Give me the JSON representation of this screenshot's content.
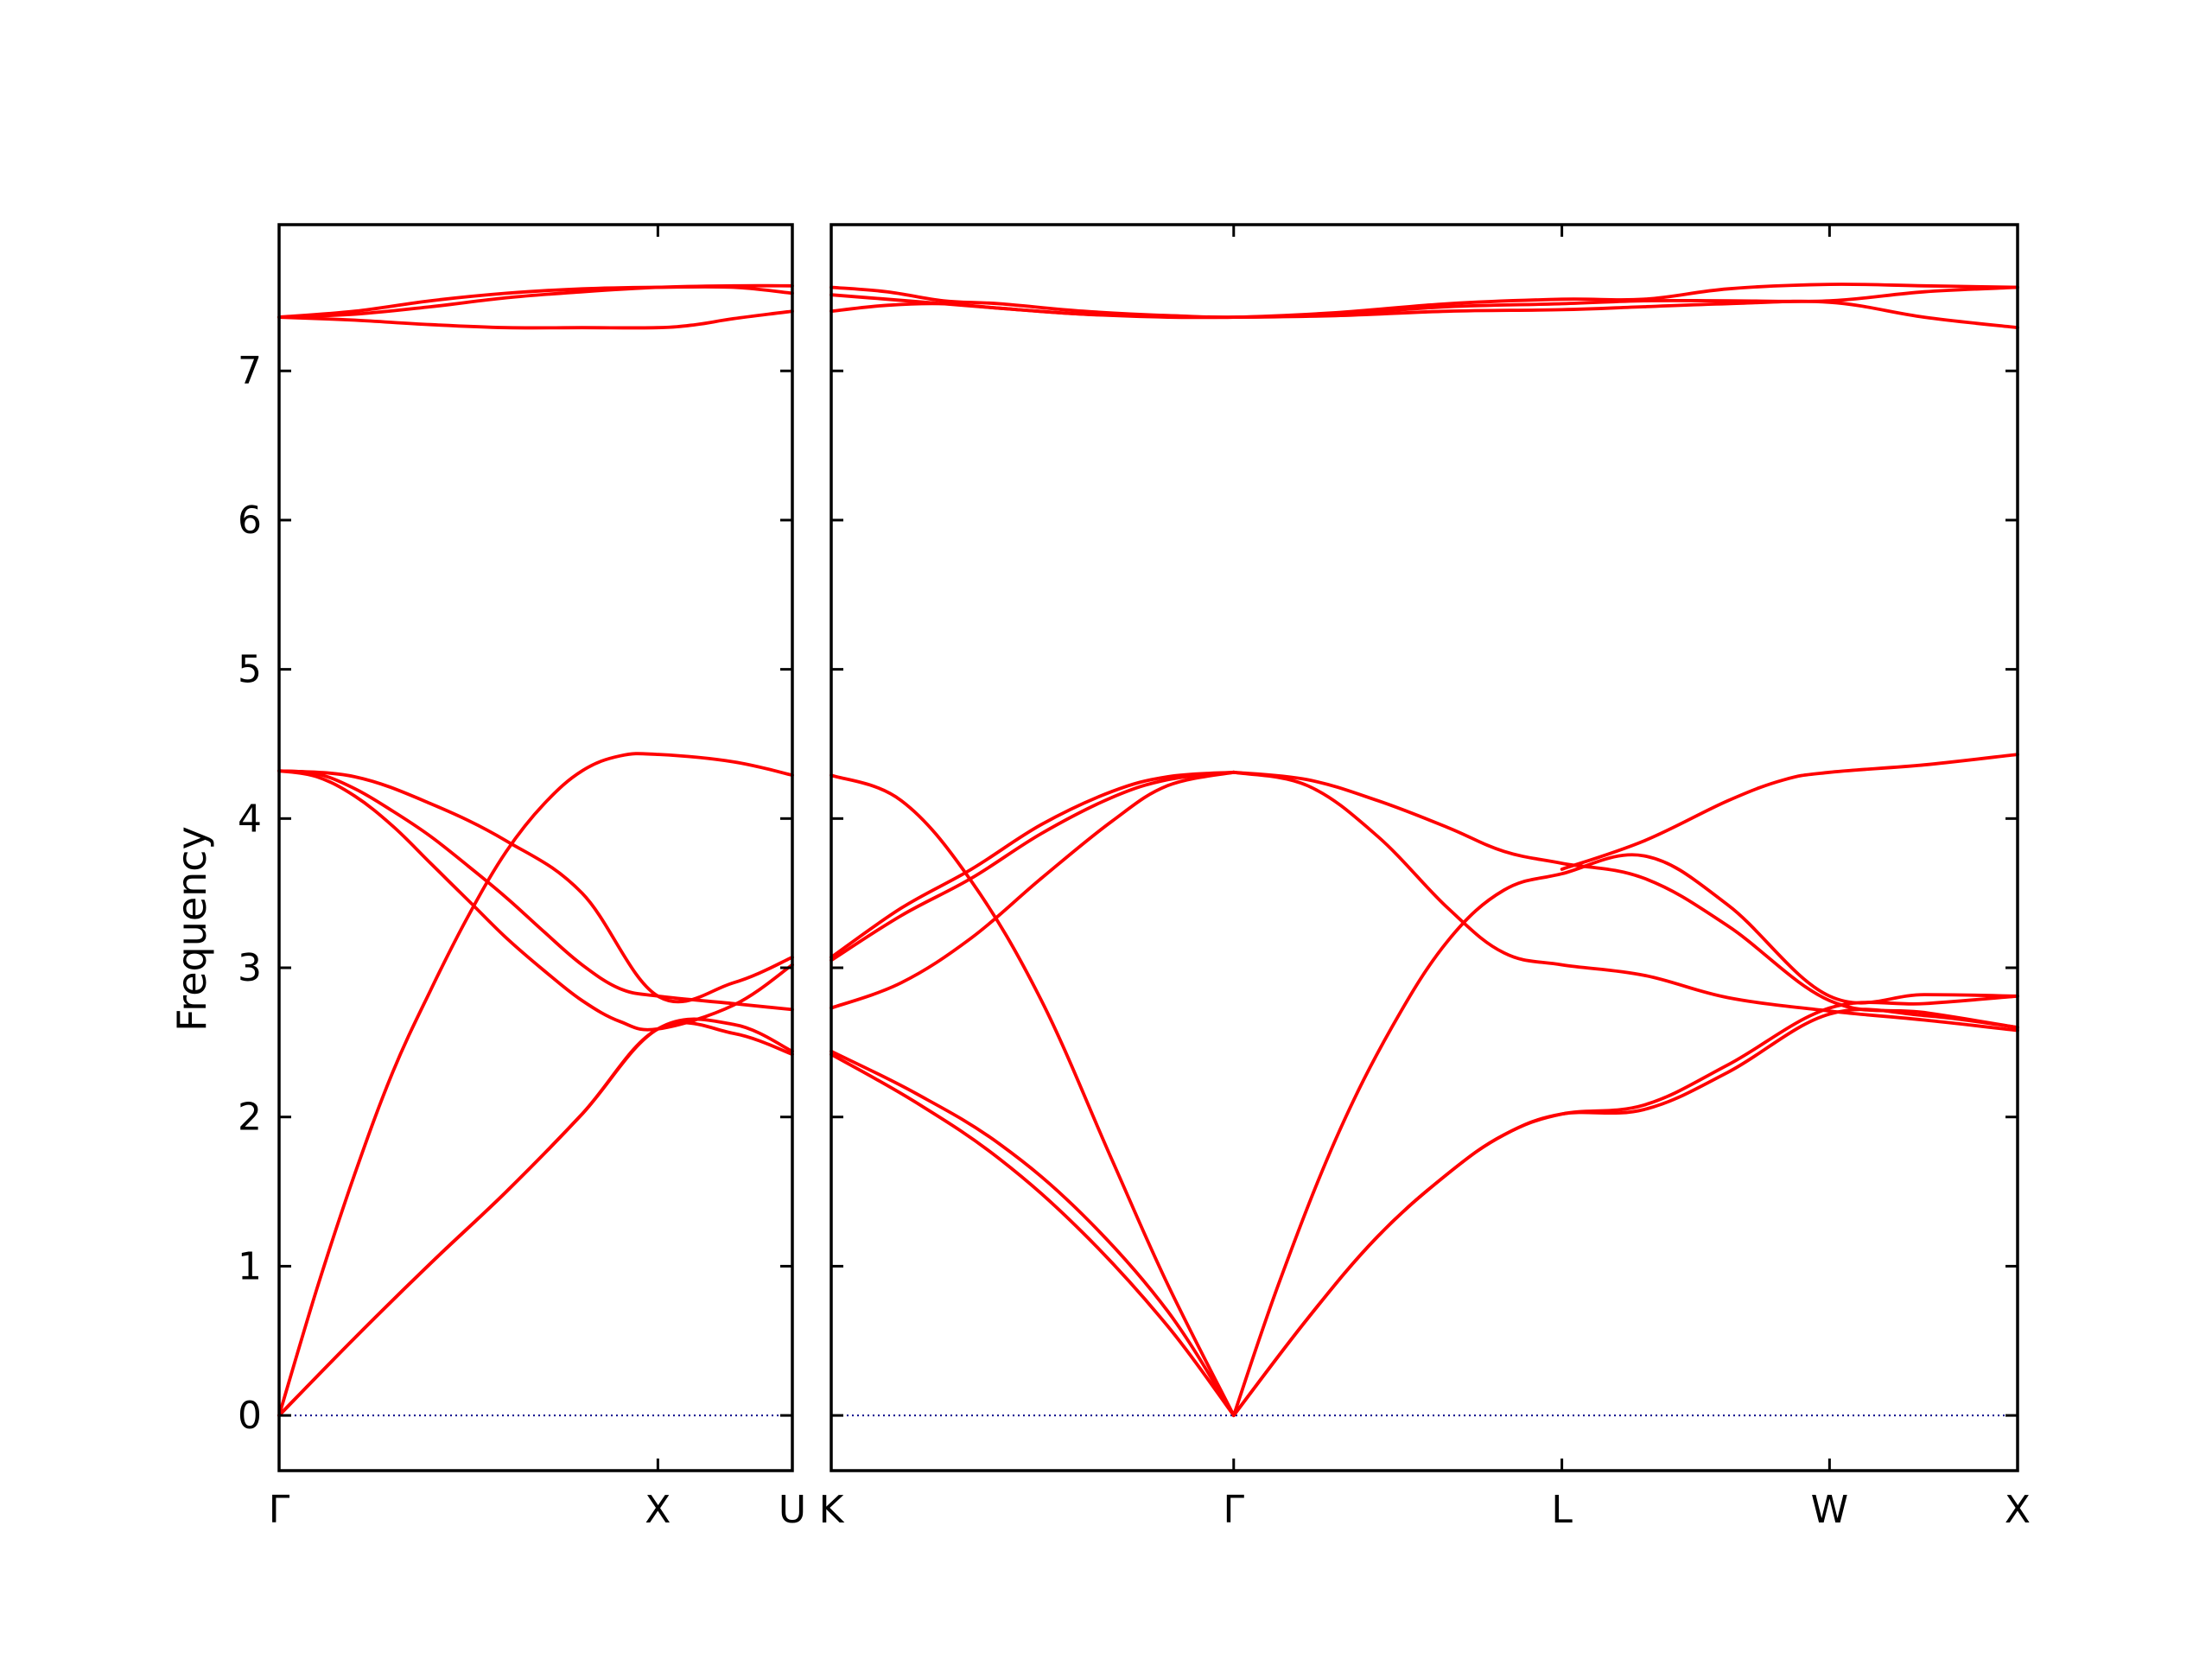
{
  "chart_data": {
    "type": "line",
    "title": "",
    "ylabel": "Frequency",
    "xlabel": "",
    "ylim": [
      -0.37,
      7.98
    ],
    "yticks": [
      0,
      1,
      2,
      3,
      4,
      5,
      6,
      7
    ],
    "grid": false,
    "colors": {
      "bands": "#ff0000",
      "zero_line": "#00008b",
      "frame": "#000000"
    },
    "segments": [
      {
        "path_labels": [
          "Γ",
          "X",
          "U"
        ],
        "path_positions": [
          0,
          1,
          1.355
        ],
        "bands": [
          {
            "name": "",
            "x": [
              0,
              0.2,
              0.4,
              0.6,
              0.8,
              1.0,
              1.2,
              1.355
            ],
            "y": [
              0,
              0.52,
              1.02,
              1.5,
              2.02,
              2.59,
              2.56,
              2.42
            ]
          },
          {
            "name": "",
            "x": [
              0,
              0.2,
              0.4,
              0.6,
              0.8,
              1.0,
              1.2,
              1.355
            ],
            "y": [
              0,
              0.52,
              1.02,
              1.5,
              2.02,
              2.59,
              2.62,
              2.44
            ]
          },
          {
            "name": "",
            "x": [
              0,
              0.1,
              0.2,
              0.3,
              0.4,
              0.5,
              0.6,
              0.7,
              0.8,
              0.9,
              1.0,
              1.2,
              1.355
            ],
            "y": [
              0,
              0.85,
              1.62,
              2.3,
              2.85,
              3.35,
              3.78,
              4.1,
              4.32,
              4.42,
              4.43,
              4.38,
              4.29
            ]
          },
          {
            "name": "",
            "x": [
              0,
              0.1,
              0.2,
              0.3,
              0.4,
              0.5,
              0.6,
              0.7,
              0.8,
              0.9,
              1.0,
              1.2,
              1.355
            ],
            "y": [
              4.32,
              4.28,
              4.15,
              3.95,
              3.7,
              3.45,
              3.2,
              2.98,
              2.78,
              2.64,
              2.59,
              2.75,
              3.02
            ]
          },
          {
            "name": "",
            "x": [
              0,
              0.1,
              0.2,
              0.3,
              0.4,
              0.5,
              0.6,
              0.7,
              0.8,
              0.9,
              1.0,
              1.2,
              1.355
            ],
            "y": [
              4.32,
              4.3,
              4.2,
              4.05,
              3.88,
              3.68,
              3.47,
              3.24,
              3.02,
              2.86,
              2.81,
              2.76,
              2.72
            ]
          },
          {
            "name": "",
            "x": [
              0,
              0.2,
              0.4,
              0.6,
              0.8,
              1.0,
              1.2,
              1.355
            ],
            "y": [
              4.32,
              4.28,
              4.1,
              3.85,
              3.5,
              2.81,
              2.9,
              3.07
            ]
          },
          {
            "name": "",
            "x": [
              0,
              0.2,
              0.4,
              0.6,
              0.8,
              1.0,
              1.1,
              1.2,
              1.355
            ],
            "y": [
              7.36,
              7.34,
              7.31,
              7.29,
              7.29,
              7.29,
              7.31,
              7.35,
              7.4
            ]
          },
          {
            "name": "",
            "x": [
              0,
              0.2,
              0.4,
              0.6,
              0.8,
              1.0,
              1.2,
              1.355
            ],
            "y": [
              7.36,
              7.4,
              7.47,
              7.52,
              7.55,
              7.56,
              7.56,
              7.52
            ]
          },
          {
            "name": "",
            "x": [
              0,
              0.2,
              0.4,
              0.6,
              0.8,
              1.0,
              1.2,
              1.355
            ],
            "y": [
              7.36,
              7.38,
              7.43,
              7.49,
              7.53,
              7.56,
              7.57,
              7.57
            ]
          }
        ]
      },
      {
        "path_labels": [
          "K",
          "Γ",
          "L",
          "W",
          "X"
        ],
        "path_positions": [
          0,
          1.436,
          2.607,
          3.562,
          4.233
        ],
        "bands": [
          {
            "name": "",
            "x": [
              0,
              0.3,
              0.6,
              0.9,
              1.2,
              1.436
            ],
            "y": [
              2.42,
              2.1,
              1.72,
              1.22,
              0.6,
              0
            ]
          },
          {
            "name": "",
            "x": [
              0,
              0.3,
              0.6,
              0.9,
              1.2,
              1.436
            ],
            "y": [
              2.44,
              2.16,
              1.82,
              1.34,
              0.7,
              0
            ]
          },
          {
            "name": "",
            "x": [
              0,
              0.25,
              0.5,
              0.75,
              1.0,
              1.2,
              1.436
            ],
            "y": [
              4.29,
              4.12,
              3.58,
              2.78,
              1.72,
              0.88,
              0
            ]
          },
          {
            "name": "",
            "x": [
              0,
              0.25,
              0.5,
              0.75,
              1.0,
              1.2,
              1.436
            ],
            "y": [
              2.73,
              2.9,
              3.2,
              3.6,
              3.98,
              4.22,
              4.31
            ]
          },
          {
            "name": "",
            "x": [
              0,
              0.25,
              0.5,
              0.75,
              1.0,
              1.2,
              1.436
            ],
            "y": [
              3.05,
              3.35,
              3.6,
              3.9,
              4.14,
              4.26,
              4.31
            ]
          },
          {
            "name": "",
            "x": [
              0,
              0.25,
              0.5,
              0.75,
              1.0,
              1.2,
              1.436
            ],
            "y": [
              3.07,
              3.4,
              3.66,
              3.96,
              4.18,
              4.28,
              4.31
            ]
          },
          {
            "name": "",
            "x": [
              1.436,
              1.7,
              1.95,
              2.2,
              2.4,
              2.607,
              2.9,
              3.2,
              3.562,
              3.9,
              4.233
            ],
            "y": [
              0,
              0.65,
              1.2,
              1.62,
              1.88,
              2.02,
              2.05,
              2.3,
              2.69,
              2.68,
              2.6
            ]
          },
          {
            "name": "",
            "x": [
              1.436,
              1.7,
              1.95,
              2.2,
              2.4,
              2.607,
              2.9,
              3.2,
              3.562,
              3.9,
              4.233
            ],
            "y": [
              0,
              0.65,
              1.2,
              1.62,
              1.88,
              2.02,
              2.08,
              2.35,
              2.73,
              2.76,
              2.81
            ]
          },
          {
            "name": "",
            "x": [
              1.436,
              1.6,
              1.8,
              2.0,
              2.2,
              2.4,
              2.607,
              2.9,
              3.2,
              3.562,
              3.9,
              4.233
            ],
            "y": [
              0,
              0.9,
              1.85,
              2.6,
              3.18,
              3.52,
              3.63,
              3.75,
              3.42,
              2.81,
              2.82,
              2.81
            ]
          },
          {
            "name": "",
            "x": [
              1.436,
              1.7,
              1.95,
              2.2,
              2.4,
              2.607,
              2.9,
              3.2,
              3.562,
              3.9,
              4.233
            ],
            "y": [
              4.31,
              4.22,
              3.88,
              3.4,
              3.1,
              3.02,
              2.95,
              2.8,
              2.71,
              2.65,
              2.58
            ]
          },
          {
            "name": "",
            "x": [
              1.436,
              1.7,
              1.95,
              2.2,
              2.4,
              2.607,
              2.9,
              3.2,
              3.562,
              3.9,
              4.233
            ],
            "y": [
              4.31,
              4.26,
              4.12,
              3.94,
              3.78,
              3.7,
              3.6,
              3.28,
              2.78,
              2.7,
              2.6
            ]
          },
          {
            "name": "",
            "x": [
              2.607,
              2.9,
              3.2,
              3.4,
              3.562,
              3.9,
              4.233
            ],
            "y": [
              3.66,
              3.85,
              4.12,
              4.26,
              4.31,
              4.36,
              4.43
            ]
          },
          {
            "name": "",
            "x": [
              0,
              0.2,
              0.4,
              0.6,
              0.9,
              1.2,
              1.436,
              1.8,
              2.2,
              2.607,
              2.9,
              3.2,
              3.562,
              3.9,
              4.233
            ],
            "y": [
              7.4,
              7.44,
              7.45,
              7.42,
              7.38,
              7.36,
              7.36,
              7.37,
              7.4,
              7.41,
              7.43,
              7.45,
              7.46,
              7.36,
              7.29
            ]
          },
          {
            "name": "",
            "x": [
              0,
              0.2,
              0.4,
              0.6,
              0.9,
              1.2,
              1.436,
              1.8,
              2.2,
              2.607,
              2.9,
              3.2,
              3.562,
              3.9,
              4.233
            ],
            "y": [
              7.51,
              7.48,
              7.45,
              7.42,
              7.38,
              7.37,
              7.36,
              7.38,
              7.43,
              7.45,
              7.47,
              7.47,
              7.47,
              7.53,
              7.56
            ]
          },
          {
            "name": "",
            "x": [
              0,
              0.2,
              0.4,
              0.6,
              0.9,
              1.2,
              1.436,
              1.8,
              2.2,
              2.607,
              2.9,
              3.2,
              3.562,
              3.9,
              4.233
            ],
            "y": [
              7.56,
              7.53,
              7.47,
              7.45,
              7.4,
              7.37,
              7.36,
              7.39,
              7.45,
              7.48,
              7.48,
              7.55,
              7.58,
              7.57,
              7.56
            ]
          }
        ]
      }
    ]
  }
}
